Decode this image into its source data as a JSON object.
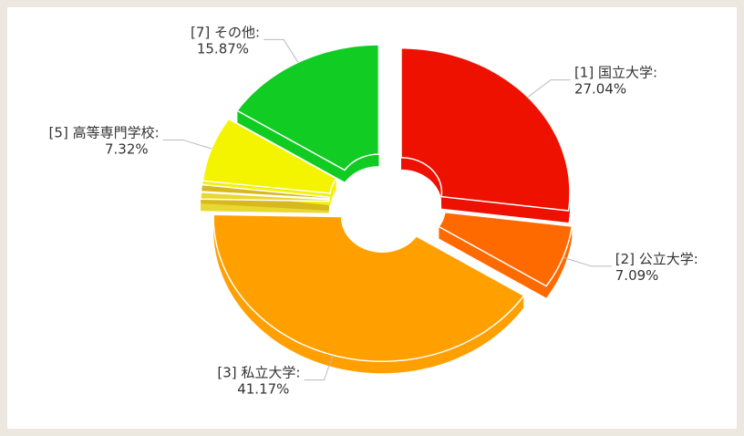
{
  "chart_data": {
    "type": "pie",
    "categories": [
      "[1] 国立大学:",
      "[2] 公立大学:",
      "[3] 私立大学:",
      null,
      null,
      "[5] 高等専門学校:",
      "[7] その他:"
    ],
    "values": [
      27.04,
      7.09,
      41.17,
      0.76,
      0.75,
      7.32,
      15.87
    ],
    "value_labels": [
      "27.04%",
      "7.09%",
      "41.17%",
      null,
      null,
      "7.32%",
      "15.87%"
    ],
    "colors": [
      "#ee1100",
      "#ff6a00",
      "#ffa000",
      "#e8d830",
      "#d8b820",
      "#f4f400",
      "#11cc22"
    ]
  }
}
